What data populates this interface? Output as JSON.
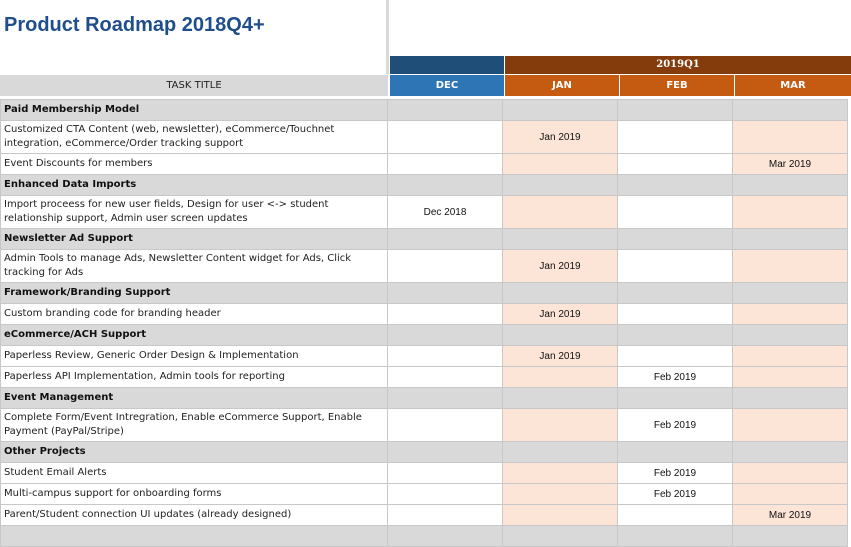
{
  "page_title": "Product Roadmap 2018Q4+",
  "quarter_label": "2019Q1",
  "task_header": "TASK TITLE",
  "months": [
    "DEC",
    "JAN",
    "FEB",
    "MAR"
  ],
  "colors": {
    "title": "#1f4e8c",
    "dec_header": "#2e75b6",
    "dec_top": "#1f4e79",
    "q1_header": "#843c0c",
    "q1_months": "#c55a11",
    "highlight": "#fce4d6",
    "category": "#d9d9d9"
  },
  "rows": [
    {
      "type": "category",
      "label": "Paid Membership Model"
    },
    {
      "type": "task",
      "label": "Customized CTA Content (web, newsletter), eCommerce/Touchnet integration, eCommerce/Order tracking support",
      "dec": "",
      "jan": "Jan 2019",
      "feb": "",
      "mar": ""
    },
    {
      "type": "task",
      "label": "Event Discounts for members",
      "dec": "",
      "jan": "",
      "feb": "",
      "mar": "Mar 2019"
    },
    {
      "type": "category",
      "label": "Enhanced Data Imports"
    },
    {
      "type": "task",
      "label": "Import proceess for new user fields, Design for user <-> student relationship support, Admin user screen updates",
      "dec": "Dec 2018",
      "jan": "",
      "feb": "",
      "mar": ""
    },
    {
      "type": "category",
      "label": "Newsletter Ad Support"
    },
    {
      "type": "task",
      "label": "Admin Tools to manage Ads, Newsletter Content widget for Ads, Click tracking for Ads",
      "dec": "",
      "jan": "Jan 2019",
      "feb": "",
      "mar": ""
    },
    {
      "type": "category",
      "label": "Framework/Branding Support"
    },
    {
      "type": "task",
      "label": "Custom branding code for branding header",
      "dec": "",
      "jan": "Jan 2019",
      "feb": "",
      "mar": ""
    },
    {
      "type": "category",
      "label": "eCommerce/ACH Support"
    },
    {
      "type": "task",
      "label": "Paperless Review, Generic Order Design & Implementation",
      "dec": "",
      "jan": "Jan 2019",
      "feb": "",
      "mar": ""
    },
    {
      "type": "task",
      "label": "Paperless API Implementation, Admin tools for reporting",
      "dec": "",
      "jan": "",
      "feb": "Feb 2019",
      "mar": ""
    },
    {
      "type": "category",
      "label": "Event Management"
    },
    {
      "type": "task",
      "label": "Complete Form/Event Intregration, Enable eCommerce Support, Enable Payment (PayPal/Stripe)",
      "dec": "",
      "jan": "",
      "feb": "Feb 2019",
      "mar": ""
    },
    {
      "type": "category",
      "label": "Other Projects"
    },
    {
      "type": "task",
      "label": "Student Email Alerts",
      "dec": "",
      "jan": "",
      "feb": "Feb 2019",
      "mar": ""
    },
    {
      "type": "task",
      "label": "Multi-campus support for onboarding forms",
      "dec": "",
      "jan": "",
      "feb": "Feb 2019",
      "mar": ""
    },
    {
      "type": "task",
      "label": "Parent/Student connection UI updates (already designed)",
      "dec": "",
      "jan": "",
      "feb": "",
      "mar": "Mar 2019"
    },
    {
      "type": "category",
      "label": ""
    }
  ]
}
